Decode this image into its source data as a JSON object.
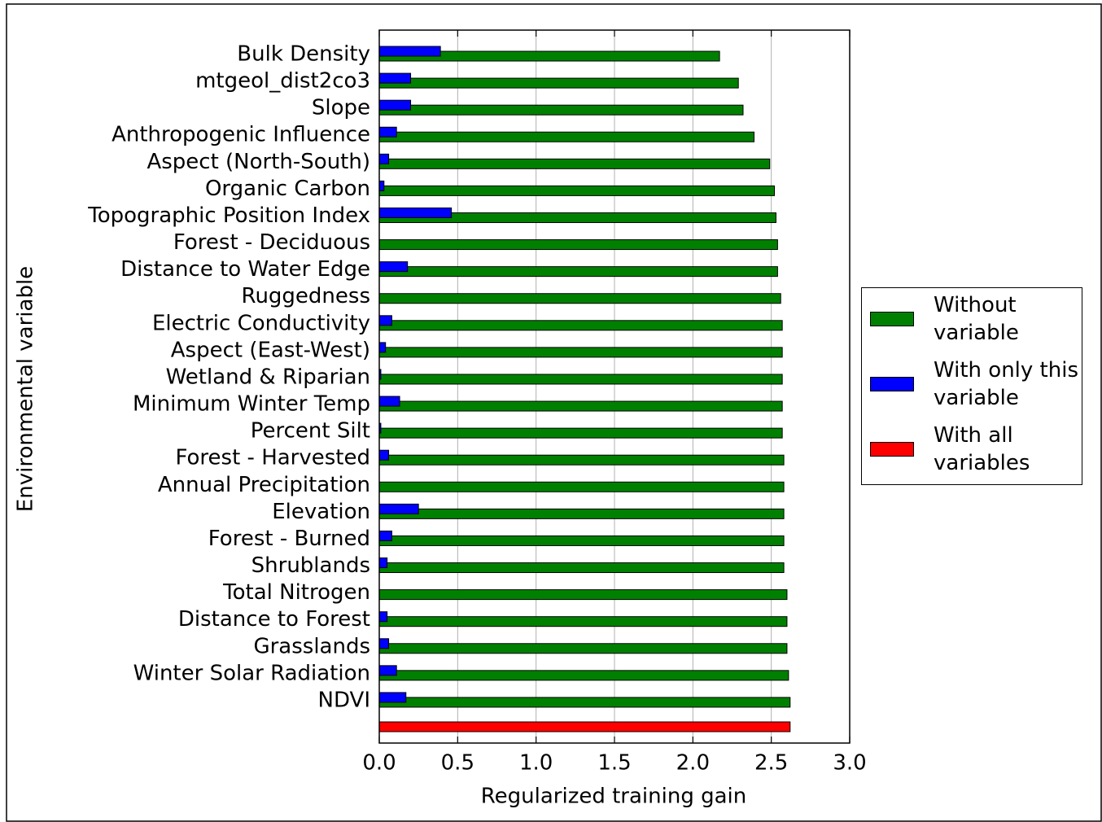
{
  "chart_data": {
    "type": "bar",
    "orientation": "horizontal",
    "xlabel": "Regularized training gain",
    "ylabel": "Environmental variable",
    "categories": [
      "Bulk Density",
      "mtgeol_dist2co3",
      "Slope",
      "Anthropogenic Influence",
      "Aspect (North-South)",
      "Organic Carbon",
      "Topographic Position Index",
      "Forest - Deciduous",
      "Distance to Water Edge",
      "Ruggedness",
      "Electric Conductivity",
      "Aspect (East-West)",
      "Wetland & Riparian",
      "Minimum Winter Temp",
      "Percent Silt",
      "Forest - Harvested",
      "Annual Precipitation",
      "Elevation",
      "Forest - Burned",
      "Shrublands",
      "Total Nitrogen",
      "Distance to Forest",
      "Grasslands",
      "Winter Solar Radiation",
      "NDVI",
      null
    ],
    "series": [
      {
        "name": "Without variable",
        "color": "#008000",
        "values": [
          2.17,
          2.29,
          2.32,
          2.39,
          2.49,
          2.52,
          2.53,
          2.54,
          2.54,
          2.56,
          2.57,
          2.57,
          2.57,
          2.57,
          2.57,
          2.58,
          2.58,
          2.58,
          2.58,
          2.58,
          2.6,
          2.6,
          2.6,
          2.61,
          2.62,
          null
        ]
      },
      {
        "name": "With only this variable",
        "color": "#0000ff",
        "values": [
          0.39,
          0.2,
          0.2,
          0.11,
          0.06,
          0.03,
          0.46,
          0.0,
          0.18,
          0.0,
          0.08,
          0.04,
          0.01,
          0.13,
          0.01,
          0.06,
          0.0,
          0.25,
          0.08,
          0.05,
          0.0,
          0.05,
          0.06,
          0.11,
          0.17,
          null
        ]
      },
      {
        "name": "With all variables",
        "color": "#ff0000",
        "values": [
          null,
          null,
          null,
          null,
          null,
          null,
          null,
          null,
          null,
          null,
          null,
          null,
          null,
          null,
          null,
          null,
          null,
          null,
          null,
          null,
          null,
          null,
          null,
          null,
          null,
          2.62
        ]
      }
    ],
    "xlim": [
      0,
      3
    ],
    "xticks": [
      {
        "value": 0,
        "label": "0.0"
      },
      0.5,
      {
        "value": 1,
        "label": "1.0"
      },
      1.5,
      {
        "value": 2,
        "label": "2.0"
      },
      2.5,
      {
        "value": 3,
        "label": "3.0"
      }
    ],
    "grid": true,
    "legend": "right"
  }
}
